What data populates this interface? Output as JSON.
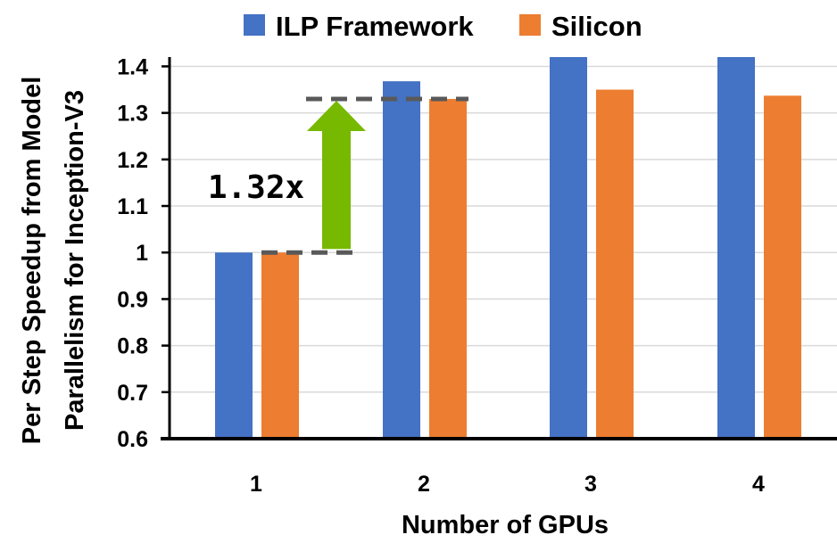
{
  "chart_data": {
    "type": "bar",
    "categories": [
      "1",
      "2",
      "3",
      "4"
    ],
    "series": [
      {
        "name": "ILP Framework",
        "values": [
          1.0,
          1.368,
          1.42,
          1.42
        ],
        "color": "#4472C4"
      },
      {
        "name": "Silicon",
        "values": [
          1.0,
          1.33,
          1.35,
          1.337
        ],
        "color": "#ED7D31"
      }
    ],
    "xlabel": "Number of GPUs",
    "ylabel": "Per Step Speedup from Model Parallelism for Inception-V3",
    "ylabel_lines": [
      "Per Step Speedup from Model",
      "Parallelism for Inception-V3"
    ],
    "ylim": [
      0.6,
      1.42
    ],
    "yticks": [
      "0.6",
      "0.7",
      "0.8",
      "0.9",
      "1",
      "1.1",
      "1.2",
      "1.3",
      "1.4"
    ],
    "grid": true,
    "legend_position": "top",
    "annotation": {
      "text": "1.32x",
      "from": 1.0,
      "to": 1.33,
      "arrow_color": "#76B900",
      "dash_color": "#595959"
    }
  }
}
